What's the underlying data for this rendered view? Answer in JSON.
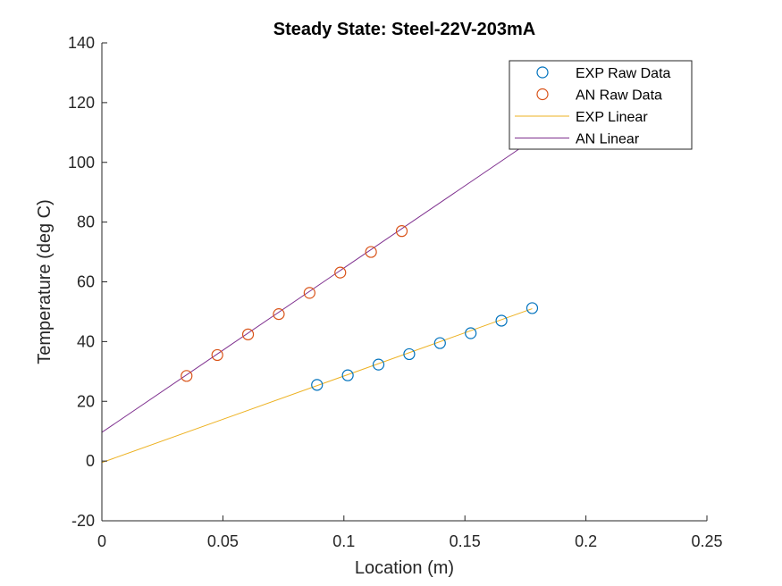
{
  "chart_data": {
    "type": "scatter",
    "title": "Steady State: Steel-22V-203mA",
    "xlabel": "Location (m)",
    "ylabel": "Temperature (deg C)",
    "xlim": [
      0,
      0.25
    ],
    "ylim": [
      -20,
      140
    ],
    "xticks": [
      0,
      0.05,
      0.1,
      0.15,
      0.2,
      0.25
    ],
    "xtick_labels": [
      "0",
      "0.05",
      "0.1",
      "0.15",
      "0.2",
      "0.25"
    ],
    "yticks": [
      -20,
      0,
      20,
      40,
      60,
      80,
      100,
      120,
      140
    ],
    "ytick_labels": [
      "-20",
      "0",
      "20",
      "40",
      "60",
      "80",
      "100",
      "120",
      "140"
    ],
    "grid": false,
    "legend_location": "top-right",
    "series": [
      {
        "name": "EXP Raw Data",
        "kind": "markers",
        "marker": "circle",
        "color": "#0072BD",
        "x": [
          0.0889,
          0.1016,
          0.1143,
          0.127,
          0.1397,
          0.1524,
          0.1651,
          0.1778
        ],
        "y": [
          25.5,
          28.7,
          32.3,
          35.8,
          39.5,
          42.8,
          47.0,
          51.2
        ]
      },
      {
        "name": "AN Raw Data",
        "kind": "markers",
        "marker": "circle",
        "color": "#D95319",
        "x": [
          0.035,
          0.0477,
          0.0604,
          0.0731,
          0.0858,
          0.0985,
          0.1112,
          0.1239
        ],
        "y": [
          28.5,
          35.5,
          42.4,
          49.2,
          56.3,
          63.1,
          70.0,
          77.0
        ]
      },
      {
        "name": "EXP Linear",
        "kind": "line",
        "color": "#EDB120",
        "x": [
          0,
          0.1778
        ],
        "y": [
          -0.5,
          51.0
        ]
      },
      {
        "name": "AN Linear",
        "kind": "line",
        "color": "#7E2F8E",
        "x": [
          0,
          0.175
        ],
        "y": [
          9.6,
          105.9
        ]
      }
    ]
  }
}
